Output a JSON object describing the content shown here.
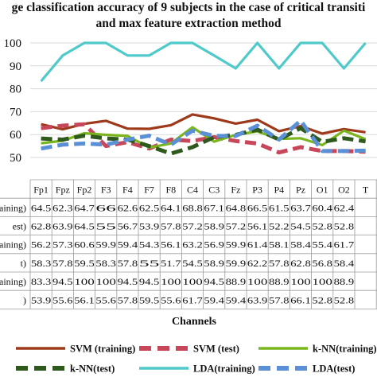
{
  "chart_data": {
    "type": "line",
    "title_lines": [
      "ge classification accuracy of 9 subjects in the case of critical transiti",
      "and max feature extraction method"
    ],
    "xlabel": "Channels",
    "ylabel": "",
    "ylim": [
      50,
      100
    ],
    "yticks": [
      "50",
      "60",
      "70",
      "80",
      "90",
      "100"
    ],
    "grid": true,
    "legend_position": "bottom",
    "categories": [
      "Fp1",
      "Fpz",
      "Fp2",
      "F3",
      "F4",
      "F7",
      "F8",
      "C4",
      "C3",
      "Fz",
      "P3",
      "P4",
      "Pz",
      "O1",
      "O2",
      "T"
    ],
    "series": [
      {
        "name": "SVM (training)",
        "row_label": "raining)",
        "color": "#9e3a1b",
        "dash": "",
        "values": [
          64.5,
          62.3,
          64.7,
          66,
          62.6,
          62.5,
          64.1,
          68.8,
          67.1,
          64.8,
          66.5,
          61.5,
          63.7,
          60.4,
          62.4,
          61
        ],
        "cells": [
          "64.5",
          "62.3",
          "64.7",
          "66",
          "62.6",
          "62.5",
          "64.1",
          "68.8",
          "67.1",
          "64.8",
          "66.5",
          "61.5",
          "63.7",
          "60.4",
          "62.4",
          ""
        ]
      },
      {
        "name": "SVM (test)",
        "row_label": "est)",
        "color": "#c8465a",
        "dash": "14,7",
        "values": [
          62.8,
          63.9,
          64.5,
          55,
          56.7,
          53.9,
          57.8,
          57.2,
          58.9,
          57.2,
          56.1,
          52.2,
          54.5,
          52.8,
          52.8,
          52.5
        ],
        "cells": [
          "62.8",
          "63.9",
          "64.5",
          "55",
          "56.7",
          "53.9",
          "57.8",
          "57.2",
          "58.9",
          "57.2",
          "56.1",
          "52.2",
          "54.5",
          "52.8",
          "52.8",
          ""
        ]
      },
      {
        "name": "k-NN(training)",
        "row_label": "raining)",
        "color": "#7ab51d",
        "dash": "",
        "values": [
          56.2,
          57.3,
          60.6,
          59.9,
          59.4,
          54.3,
          56.1,
          63.2,
          56.9,
          59.9,
          61.4,
          58.1,
          58.4,
          55.4,
          61.7,
          58
        ],
        "cells": [
          "56.2",
          "57.3",
          "60.6",
          "59.9",
          "59.4",
          "54.3",
          "56.1",
          "63.2",
          "56.9",
          "59.9",
          "61.4",
          "58.1",
          "58.4",
          "55.4",
          "61.7",
          ""
        ]
      },
      {
        "name": "k-NN(test)",
        "row_label": "t)",
        "color": "#2f5a1e",
        "dash": "14,7",
        "values": [
          58.3,
          57.8,
          59.5,
          58.3,
          57.8,
          55,
          51.7,
          54.5,
          58.9,
          59.9,
          62.2,
          57.8,
          62.8,
          56.8,
          58.4,
          57
        ],
        "cells": [
          "58.3",
          "57.8",
          "59.5",
          "58.3",
          "57.8",
          "55",
          "51.7",
          "54.5",
          "58.9",
          "59.9",
          "62.2",
          "57.8",
          "62.8",
          "56.8",
          "58.4",
          ""
        ]
      },
      {
        "name": "LDA(training)",
        "row_label": "raining)",
        "color": "#4fc9c9",
        "dash": "",
        "values": [
          83.3,
          94.5,
          100,
          100,
          94.5,
          94.5,
          100,
          100,
          94.5,
          88.9,
          100,
          88.9,
          100,
          100,
          88.9,
          100
        ],
        "cells": [
          "83.3",
          "94.5",
          "100",
          "100",
          "94.5",
          "94.5",
          "100",
          "100",
          "94.5",
          "88.9",
          "100",
          "88.9",
          "100",
          "100",
          "88.9",
          ""
        ]
      },
      {
        "name": "LDA(test)",
        "row_label": ")",
        "color": "#5b8fd6",
        "dash": "14,7",
        "values": [
          53.9,
          55.6,
          56.1,
          55.6,
          57.8,
          59.5,
          55.6,
          61.7,
          59.4,
          59.4,
          63.9,
          57.8,
          66.1,
          52.8,
          52.8,
          53
        ],
        "cells": [
          "53.9",
          "55.6",
          "56.1",
          "55.6",
          "57.8",
          "59.5",
          "55.6",
          "61.7",
          "59.4",
          "59.4",
          "63.9",
          "57.8",
          "66.1",
          "52.8",
          "52.8",
          ""
        ]
      }
    ]
  }
}
